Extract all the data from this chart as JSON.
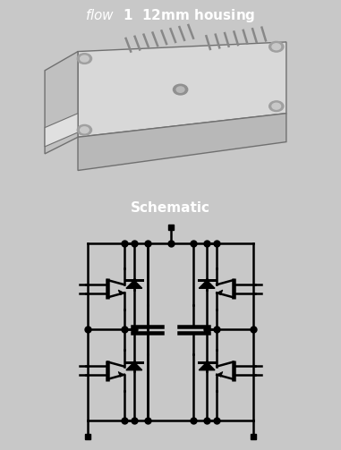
{
  "top_title": "flow  1  12mm housing",
  "bottom_title": "Schematic",
  "header_bg": "#8c8c8c",
  "panel_bg": "#ffffff",
  "outer_bg": "#c8c8c8",
  "title_color": "#ffffff",
  "title_fontsize": 11,
  "lw": 1.8,
  "fig_width": 3.81,
  "fig_height": 5.03,
  "module_body": "#d0d0d0",
  "module_side": "#a8a8a8",
  "module_dark": "#707070",
  "module_pin": "#888888"
}
